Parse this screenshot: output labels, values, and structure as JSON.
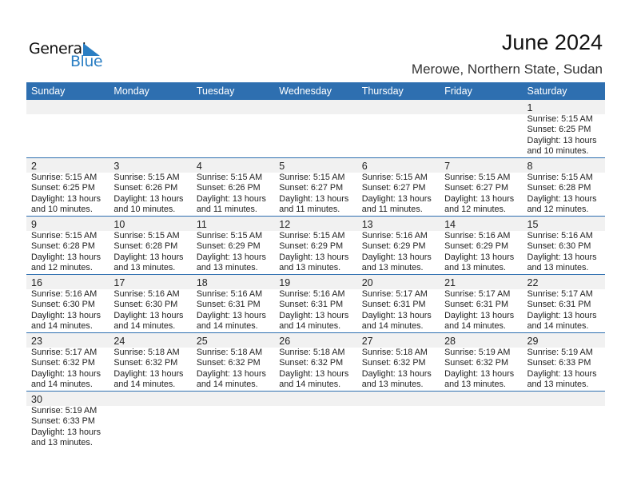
{
  "logo": {
    "text_top": "General",
    "text_bottom": "Blue",
    "colors": {
      "dark": "#111111",
      "blue": "#2a7ec3"
    }
  },
  "header": {
    "title": "June 2024",
    "location": "Merowe, Northern State, Sudan"
  },
  "colors": {
    "accent": "#2e6fb0",
    "day_band": "#f1f1f1"
  },
  "weekdays": [
    "Sunday",
    "Monday",
    "Tuesday",
    "Wednesday",
    "Thursday",
    "Friday",
    "Saturday"
  ],
  "first_weekday_offset": 6,
  "days": [
    {
      "day": "1",
      "sunrise": "Sunrise: 5:15 AM",
      "sunset": "Sunset: 6:25 PM",
      "daylight": "Daylight: 13 hours",
      "minutes": "and 10 minutes."
    },
    {
      "day": "2",
      "sunrise": "Sunrise: 5:15 AM",
      "sunset": "Sunset: 6:25 PM",
      "daylight": "Daylight: 13 hours",
      "minutes": "and 10 minutes."
    },
    {
      "day": "3",
      "sunrise": "Sunrise: 5:15 AM",
      "sunset": "Sunset: 6:26 PM",
      "daylight": "Daylight: 13 hours",
      "minutes": "and 10 minutes."
    },
    {
      "day": "4",
      "sunrise": "Sunrise: 5:15 AM",
      "sunset": "Sunset: 6:26 PM",
      "daylight": "Daylight: 13 hours",
      "minutes": "and 11 minutes."
    },
    {
      "day": "5",
      "sunrise": "Sunrise: 5:15 AM",
      "sunset": "Sunset: 6:27 PM",
      "daylight": "Daylight: 13 hours",
      "minutes": "and 11 minutes."
    },
    {
      "day": "6",
      "sunrise": "Sunrise: 5:15 AM",
      "sunset": "Sunset: 6:27 PM",
      "daylight": "Daylight: 13 hours",
      "minutes": "and 11 minutes."
    },
    {
      "day": "7",
      "sunrise": "Sunrise: 5:15 AM",
      "sunset": "Sunset: 6:27 PM",
      "daylight": "Daylight: 13 hours",
      "minutes": "and 12 minutes."
    },
    {
      "day": "8",
      "sunrise": "Sunrise: 5:15 AM",
      "sunset": "Sunset: 6:28 PM",
      "daylight": "Daylight: 13 hours",
      "minutes": "and 12 minutes."
    },
    {
      "day": "9",
      "sunrise": "Sunrise: 5:15 AM",
      "sunset": "Sunset: 6:28 PM",
      "daylight": "Daylight: 13 hours",
      "minutes": "and 12 minutes."
    },
    {
      "day": "10",
      "sunrise": "Sunrise: 5:15 AM",
      "sunset": "Sunset: 6:28 PM",
      "daylight": "Daylight: 13 hours",
      "minutes": "and 13 minutes."
    },
    {
      "day": "11",
      "sunrise": "Sunrise: 5:15 AM",
      "sunset": "Sunset: 6:29 PM",
      "daylight": "Daylight: 13 hours",
      "minutes": "and 13 minutes."
    },
    {
      "day": "12",
      "sunrise": "Sunrise: 5:15 AM",
      "sunset": "Sunset: 6:29 PM",
      "daylight": "Daylight: 13 hours",
      "minutes": "and 13 minutes."
    },
    {
      "day": "13",
      "sunrise": "Sunrise: 5:16 AM",
      "sunset": "Sunset: 6:29 PM",
      "daylight": "Daylight: 13 hours",
      "minutes": "and 13 minutes."
    },
    {
      "day": "14",
      "sunrise": "Sunrise: 5:16 AM",
      "sunset": "Sunset: 6:29 PM",
      "daylight": "Daylight: 13 hours",
      "minutes": "and 13 minutes."
    },
    {
      "day": "15",
      "sunrise": "Sunrise: 5:16 AM",
      "sunset": "Sunset: 6:30 PM",
      "daylight": "Daylight: 13 hours",
      "minutes": "and 13 minutes."
    },
    {
      "day": "16",
      "sunrise": "Sunrise: 5:16 AM",
      "sunset": "Sunset: 6:30 PM",
      "daylight": "Daylight: 13 hours",
      "minutes": "and 14 minutes."
    },
    {
      "day": "17",
      "sunrise": "Sunrise: 5:16 AM",
      "sunset": "Sunset: 6:30 PM",
      "daylight": "Daylight: 13 hours",
      "minutes": "and 14 minutes."
    },
    {
      "day": "18",
      "sunrise": "Sunrise: 5:16 AM",
      "sunset": "Sunset: 6:31 PM",
      "daylight": "Daylight: 13 hours",
      "minutes": "and 14 minutes."
    },
    {
      "day": "19",
      "sunrise": "Sunrise: 5:16 AM",
      "sunset": "Sunset: 6:31 PM",
      "daylight": "Daylight: 13 hours",
      "minutes": "and 14 minutes."
    },
    {
      "day": "20",
      "sunrise": "Sunrise: 5:17 AM",
      "sunset": "Sunset: 6:31 PM",
      "daylight": "Daylight: 13 hours",
      "minutes": "and 14 minutes."
    },
    {
      "day": "21",
      "sunrise": "Sunrise: 5:17 AM",
      "sunset": "Sunset: 6:31 PM",
      "daylight": "Daylight: 13 hours",
      "minutes": "and 14 minutes."
    },
    {
      "day": "22",
      "sunrise": "Sunrise: 5:17 AM",
      "sunset": "Sunset: 6:31 PM",
      "daylight": "Daylight: 13 hours",
      "minutes": "and 14 minutes."
    },
    {
      "day": "23",
      "sunrise": "Sunrise: 5:17 AM",
      "sunset": "Sunset: 6:32 PM",
      "daylight": "Daylight: 13 hours",
      "minutes": "and 14 minutes."
    },
    {
      "day": "24",
      "sunrise": "Sunrise: 5:18 AM",
      "sunset": "Sunset: 6:32 PM",
      "daylight": "Daylight: 13 hours",
      "minutes": "and 14 minutes."
    },
    {
      "day": "25",
      "sunrise": "Sunrise: 5:18 AM",
      "sunset": "Sunset: 6:32 PM",
      "daylight": "Daylight: 13 hours",
      "minutes": "and 14 minutes."
    },
    {
      "day": "26",
      "sunrise": "Sunrise: 5:18 AM",
      "sunset": "Sunset: 6:32 PM",
      "daylight": "Daylight: 13 hours",
      "minutes": "and 14 minutes."
    },
    {
      "day": "27",
      "sunrise": "Sunrise: 5:18 AM",
      "sunset": "Sunset: 6:32 PM",
      "daylight": "Daylight: 13 hours",
      "minutes": "and 13 minutes."
    },
    {
      "day": "28",
      "sunrise": "Sunrise: 5:19 AM",
      "sunset": "Sunset: 6:32 PM",
      "daylight": "Daylight: 13 hours",
      "minutes": "and 13 minutes."
    },
    {
      "day": "29",
      "sunrise": "Sunrise: 5:19 AM",
      "sunset": "Sunset: 6:33 PM",
      "daylight": "Daylight: 13 hours",
      "minutes": "and 13 minutes."
    },
    {
      "day": "30",
      "sunrise": "Sunrise: 5:19 AM",
      "sunset": "Sunset: 6:33 PM",
      "daylight": "Daylight: 13 hours",
      "minutes": "and 13 minutes."
    }
  ]
}
